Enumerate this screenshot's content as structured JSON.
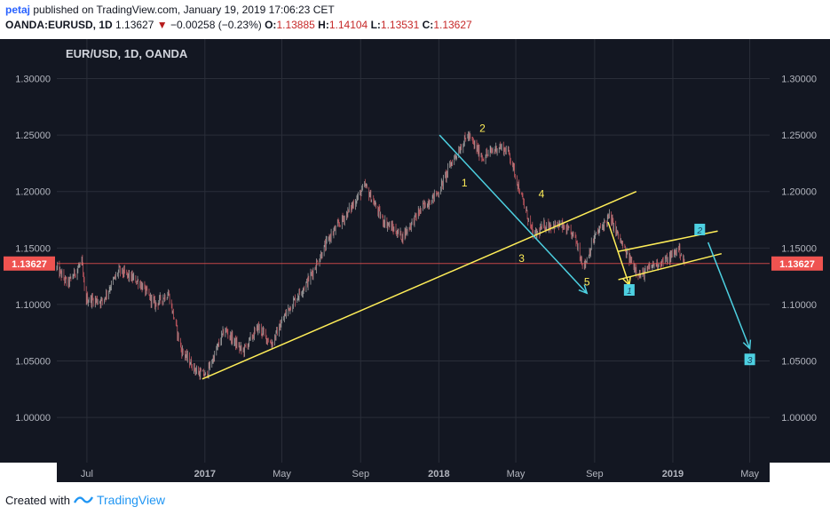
{
  "header": {
    "user": "petaj",
    "published": "published on TradingView.com, January 19, 2019 17:06:23 CET",
    "symbol": "OANDA:EURUSD, 1D",
    "last": "1.13627",
    "change": "−0.00258 (−0.23%)",
    "open_label": "O:",
    "open": "1.13885",
    "high_label": "H:",
    "high": "1.14104",
    "low_label": "L:",
    "low": "1.13531",
    "close_label": "C:",
    "close": "1.13627"
  },
  "footer": {
    "created_with": "Created with",
    "brand": "TradingView"
  },
  "colors": {
    "background": "#131722",
    "grid": "#2a2e39",
    "bull": "#9e9e9e",
    "bear": "#c2575f",
    "price_line": "#ef5350",
    "trend_yellow": "#ffee58",
    "trend_cyan": "#4dd0e1"
  },
  "chart_data": {
    "type": "candlestick",
    "title": "EUR/USD, 1D, OANDA",
    "timeframe": "1D",
    "x_axis_start": "2016-05-15",
    "x_axis_end": "2019-06-01",
    "x_ticks": [
      {
        "label": "Jul",
        "date": "2016-07-01",
        "bold": false
      },
      {
        "label": "2017",
        "date": "2017-01-01",
        "bold": true
      },
      {
        "label": "May",
        "date": "2017-05-01",
        "bold": false
      },
      {
        "label": "Sep",
        "date": "2017-09-01",
        "bold": false
      },
      {
        "label": "2018",
        "date": "2018-01-01",
        "bold": true
      },
      {
        "label": "May",
        "date": "2018-05-01",
        "bold": false
      },
      {
        "label": "Sep",
        "date": "2018-09-01",
        "bold": false
      },
      {
        "label": "2019",
        "date": "2019-01-01",
        "bold": true
      },
      {
        "label": "May",
        "date": "2019-05-01",
        "bold": false
      }
    ],
    "y_range": [
      0.96,
      1.335
    ],
    "y_ticks": [
      "1.30000",
      "1.25000",
      "1.20000",
      "1.15000",
      "1.10000",
      "1.05000",
      "1.00000"
    ],
    "last_price": "1.13627",
    "price_path": [
      {
        "date": "2016-05-15",
        "close": 1.132
      },
      {
        "date": "2016-06-01",
        "close": 1.118
      },
      {
        "date": "2016-06-23",
        "close": 1.138
      },
      {
        "date": "2016-06-28",
        "close": 1.105
      },
      {
        "date": "2016-07-25",
        "close": 1.103
      },
      {
        "date": "2016-08-20",
        "close": 1.13
      },
      {
        "date": "2016-09-20",
        "close": 1.12
      },
      {
        "date": "2016-10-15",
        "close": 1.1
      },
      {
        "date": "2016-11-05",
        "close": 1.11
      },
      {
        "date": "2016-11-25",
        "close": 1.06
      },
      {
        "date": "2016-12-20",
        "close": 1.04
      },
      {
        "date": "2017-01-03",
        "close": 1.037
      },
      {
        "date": "2017-02-01",
        "close": 1.078
      },
      {
        "date": "2017-03-01",
        "close": 1.058
      },
      {
        "date": "2017-03-25",
        "close": 1.08
      },
      {
        "date": "2017-04-15",
        "close": 1.065
      },
      {
        "date": "2017-05-10",
        "close": 1.095
      },
      {
        "date": "2017-06-10",
        "close": 1.12
      },
      {
        "date": "2017-07-15",
        "close": 1.16
      },
      {
        "date": "2017-08-10",
        "close": 1.18
      },
      {
        "date": "2017-09-08",
        "close": 1.205
      },
      {
        "date": "2017-10-05",
        "close": 1.175
      },
      {
        "date": "2017-11-05",
        "close": 1.16
      },
      {
        "date": "2017-12-05",
        "close": 1.185
      },
      {
        "date": "2018-01-01",
        "close": 1.2
      },
      {
        "date": "2018-01-20",
        "close": 1.225
      },
      {
        "date": "2018-02-15",
        "close": 1.25
      },
      {
        "date": "2018-03-10",
        "close": 1.23
      },
      {
        "date": "2018-04-05",
        "close": 1.24
      },
      {
        "date": "2018-04-20",
        "close": 1.235
      },
      {
        "date": "2018-05-10",
        "close": 1.195
      },
      {
        "date": "2018-05-29",
        "close": 1.16
      },
      {
        "date": "2018-06-15",
        "close": 1.17
      },
      {
        "date": "2018-07-10",
        "close": 1.17
      },
      {
        "date": "2018-08-01",
        "close": 1.16
      },
      {
        "date": "2018-08-15",
        "close": 1.133
      },
      {
        "date": "2018-09-01",
        "close": 1.16
      },
      {
        "date": "2018-09-24",
        "close": 1.178
      },
      {
        "date": "2018-10-20",
        "close": 1.145
      },
      {
        "date": "2018-11-12",
        "close": 1.125
      },
      {
        "date": "2018-12-01",
        "close": 1.135
      },
      {
        "date": "2018-12-25",
        "close": 1.14
      },
      {
        "date": "2019-01-10",
        "close": 1.15
      },
      {
        "date": "2019-01-19",
        "close": 1.136
      }
    ],
    "annotations": {
      "lines": [
        {
          "color": "yellow",
          "from": {
            "date": "2016-12-28",
            "price": 1.034
          },
          "to": {
            "date": "2018-11-05",
            "price": 1.2
          }
        },
        {
          "color": "yellow",
          "from": {
            "date": "2018-10-08",
            "price": 1.147
          },
          "to": {
            "date": "2019-03-12",
            "price": 1.165
          }
        },
        {
          "color": "yellow",
          "from": {
            "date": "2018-10-08",
            "price": 1.122
          },
          "to": {
            "date": "2019-03-18",
            "price": 1.145
          }
        },
        {
          "color": "yellow",
          "from": {
            "date": "2018-09-22",
            "price": 1.173
          },
          "to": {
            "date": "2018-10-25",
            "price": 1.117
          },
          "arrow": true
        },
        {
          "color": "cyan",
          "from": {
            "date": "2018-01-02",
            "price": 1.25
          },
          "to": {
            "date": "2018-08-20",
            "price": 1.11
          },
          "arrow": true
        },
        {
          "color": "cyan",
          "from": {
            "date": "2019-02-25",
            "price": 1.155
          },
          "to": {
            "date": "2019-05-01",
            "price": 1.061
          },
          "arrow": true
        }
      ],
      "labels": [
        {
          "text": "1",
          "date": "2018-02-10",
          "price": 1.2075,
          "color": "yellow",
          "boxed": false
        },
        {
          "text": "2",
          "date": "2018-03-10",
          "price": 1.256,
          "color": "yellow",
          "boxed": false
        },
        {
          "text": "3",
          "date": "2018-05-10",
          "price": 1.141,
          "color": "yellow",
          "boxed": false
        },
        {
          "text": "4",
          "date": "2018-06-10",
          "price": 1.198,
          "color": "yellow",
          "boxed": false
        },
        {
          "text": "5",
          "date": "2018-08-20",
          "price": 1.12,
          "color": "yellow",
          "boxed": false
        },
        {
          "text": "1",
          "date": "2018-10-25",
          "price": 1.1125,
          "color": "cyan",
          "boxed": true
        },
        {
          "text": "2",
          "date": "2019-02-12",
          "price": 1.166,
          "color": "cyan",
          "boxed": true
        },
        {
          "text": "3",
          "date": "2019-05-01",
          "price": 1.051,
          "color": "cyan",
          "boxed": true
        }
      ]
    }
  }
}
